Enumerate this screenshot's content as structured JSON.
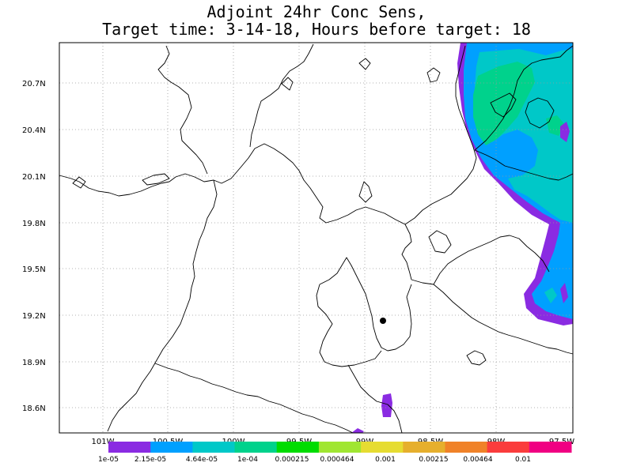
{
  "title": {
    "line1": "Adjoint 24hr Conc Sens,",
    "line2": "Target time: 3-14-18, Hours before target: 18"
  },
  "map": {
    "y_labels": [
      "20.7N",
      "20.4N",
      "20.1N",
      "19.8N",
      "19.5N",
      "19.2N",
      "18.9N",
      "18.6N"
    ],
    "x_labels": [
      "101W",
      "100.5W",
      "100W",
      "99.5W",
      "99W",
      "98.5W",
      "98W",
      "97.5W"
    ],
    "marker": "receptor-dot"
  },
  "colorbar": {
    "colors": [
      "#8a2be2",
      "#00a0ff",
      "#00c8c8",
      "#00d28c",
      "#00dc00",
      "#a0e632",
      "#e6dc32",
      "#e6af2d",
      "#f08228",
      "#fa3c3c",
      "#f00082"
    ],
    "labels": [
      "1e-05",
      "2.15e-05",
      "4.64e-05",
      "1e-04",
      "0.000215",
      "0.000464",
      "0.001",
      "0.00215",
      "0.00464",
      "0.01"
    ]
  }
}
